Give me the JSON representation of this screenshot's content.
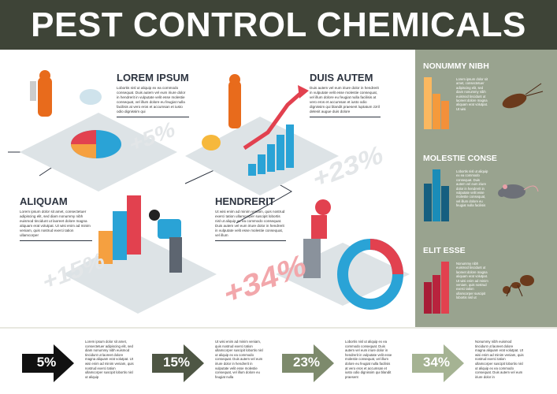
{
  "title": "PEST CONTROL CHEMICALS",
  "colors": {
    "header": "#3e4437",
    "side_panel": "#99a38f",
    "accent_red": "#e2414f",
    "accent_blue": "#2aa3d6",
    "accent_orange": "#f5a040"
  },
  "sections": [
    {
      "heading": "LOREM IPSUM",
      "text": "Lobortis nisl ut aliquip ex ea commodo consequat. Duis autem vel eum iriure dolor in hendrerit in vulputate velit esse molestie consequat, vel illum dolore eu feugiat nulla facilisis at vero eros et accumsan et iusto odio dignissim qui"
    },
    {
      "heading": "DUIS AUTEM",
      "text": "Duis autem vel eum iriure dolor in hendrerit in vulputate velit esse molestie consequat, vel illum dolore eu feugiat nulla facilisis at vero eros et accumsan et iusto odio dignissim qui blandit praesent luptatum zzril delenit augue duis dolore"
    },
    {
      "heading": "ALIQUAM",
      "text": "Lorem ipsum dolor sit amet, consectetuer adipiscing elit, sed diam nonummy nibh euismod tincidunt ut laoreet dolore magna aliquam erat volutpat. Ut wisi enim ad minim veniam, quis nostrud exerci tation ullamcorper"
    },
    {
      "heading": "HENDRERIT",
      "text": "Ut wisi enim ad minim veniam, quis nostrud exerci tation ullamcorper suscipit lobortis nisl ut aliquip ex ea commodo consequat. Duis autem vel eum iriure dolor in hendrerit in vulputate velit esse molestie consequat, vel illum"
    }
  ],
  "watermarks": [
    "+5%",
    "+23%",
    "+15%",
    "+34%"
  ],
  "side_panel": [
    {
      "heading": "NONUMMY NIBH",
      "text": "Lorem ipsum dolor sit amet, consectetuer adipiscing elit, sed diam nonummy nibh euismod tincidunt ut laoreet dolore magna aliquam erat volutpat. Ut wisi",
      "pest": "cockroach-icon",
      "bar_levels": [
        1.0,
        0.68,
        0.55
      ],
      "bar_colors": [
        "#fbb860",
        "#f59a3c",
        "#f3903a"
      ]
    },
    {
      "heading": "MOLESTIE CONSE",
      "text": "Lobortis nisl ut aliquip ex ea commodo consequat. Duis autem vel eum iriure dolor in hendrerit in vulputate velit esse molestie consequat, vel illum dolore eu feugiat nulla facilisis",
      "pest": "rat-icon",
      "bar_levels": [
        0.72,
        1.0,
        0.68
      ],
      "bar_colors": [
        "#155f80",
        "#1a8cb8",
        "#155f80"
      ]
    },
    {
      "heading": "ELIT ESSE",
      "text": "Nonummy nibh euismod tincidunt ut laoreet dolore magna aliquam erat volutpat. Ut wisi enim ad minim veniam, quis nostrud exerci tation ullamcorper suscipit lobortis nisl ut",
      "pest": "ant-icon",
      "bar_levels": [
        0.6,
        0.75,
        1.0
      ],
      "bar_colors": [
        "#a81c36",
        "#b8233d",
        "#e2414f"
      ]
    }
  ],
  "bottom": [
    {
      "value": "5%",
      "color": "#111111",
      "text": "Lorem ipsum dolor sit amet, consectetuer adipiscing elit, sed diam nonummy nibh euismod tincidunt ut laoreet dolore magna aliquam erat volutpat. Ut wisi enim ad minim veniam, quis nostrud exerci tation ullamcorper suscipit lobortis nisl ut aliquip"
    },
    {
      "value": "15%",
      "color": "#4e5644",
      "text": "Ut wisi enim ad minim veniam, quis nostrud exerci tation ullamcorper suscipit lobortis nisl ut aliquip ex ea commodo consequat. Duis autem vel eum iriure dolor in hendrerit in vulputate velit esse molestie consequat, vel illum dolore eu feugiat nulla"
    },
    {
      "value": "23%",
      "color": "#7d8a6c",
      "text": "Lobortis nisl ut aliquip ex ea commodo consequat. Duis autem vel eum iriure dolor in hendrerit in vulputate velit esse molestie consequat, vel illum dolore eu feugiat nulla facilisis at vero eros et accumsan et iusto odio dignissim qui blandit praesent"
    },
    {
      "value": "34%",
      "color": "#a5b393",
      "text": "Nonummy nibh euismod tincidunt ut laoreet dolore magna aliquam erat volutpat. Ut wisi enim ad minim veniam, quis nostrud exerci tation ullamcorper suscipit lobortis nisl ut aliquip ex ea commodo consequat. Duis autem vel eum iriure dolor in"
    }
  ]
}
